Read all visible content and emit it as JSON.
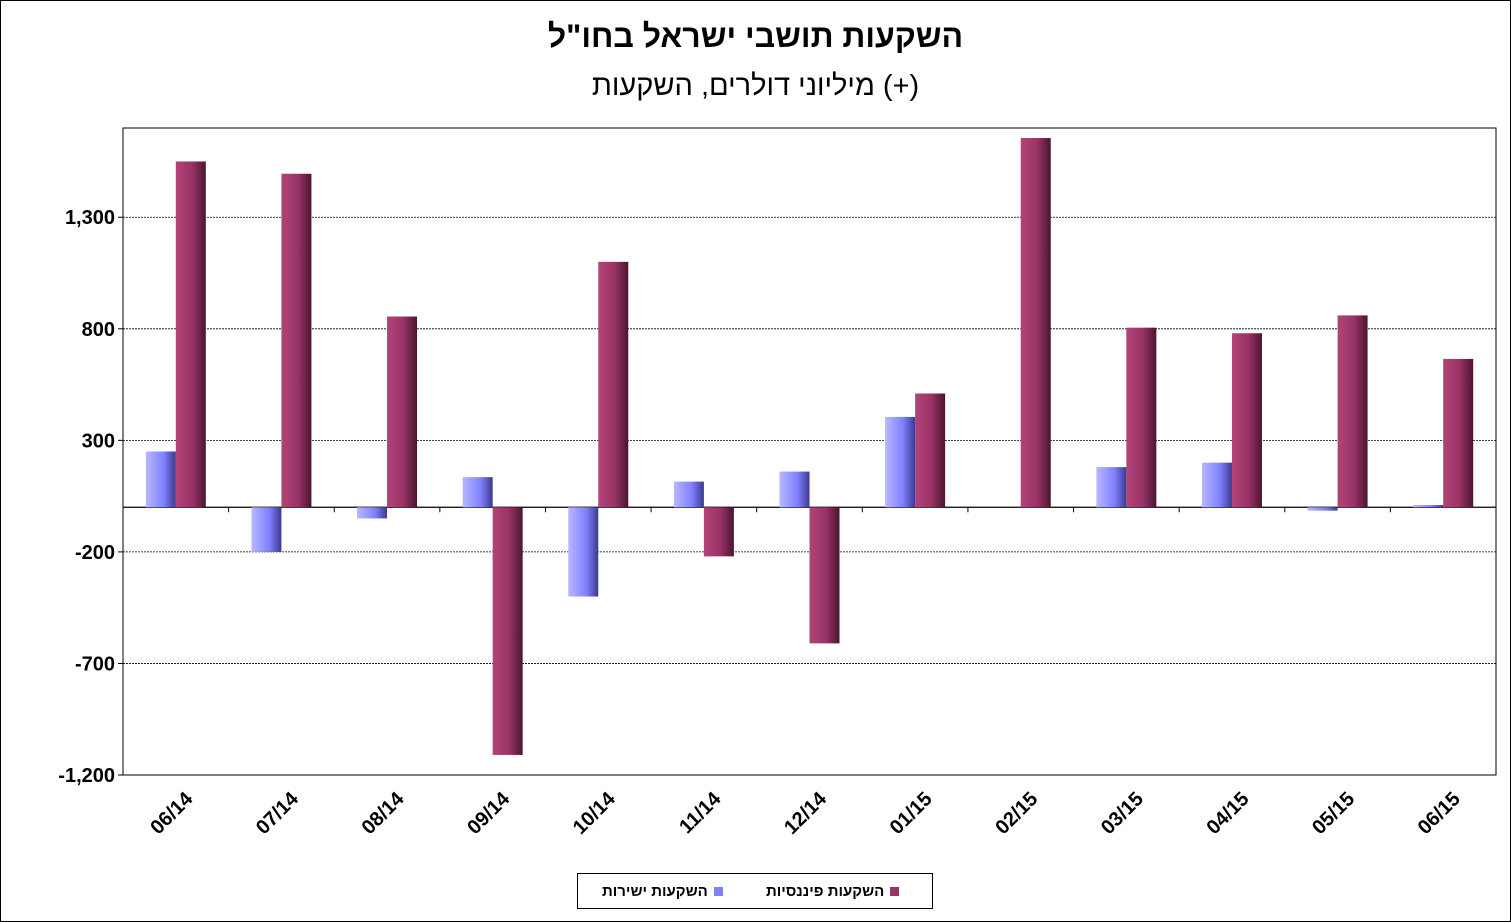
{
  "chart_data": {
    "type": "bar",
    "title": "השקעות תושבי ישראל בחו\"ל",
    "subtitle": "מיליוני דולרים, השקעות (+)",
    "categories": [
      "06/14",
      "07/14",
      "08/14",
      "09/14",
      "10/14",
      "11/14",
      "12/14",
      "01/15",
      "02/15",
      "03/15",
      "04/15",
      "05/15",
      "06/15"
    ],
    "series": [
      {
        "name": "השקעות ישירות",
        "color": "#8080ff",
        "values": [
          250,
          -200,
          -50,
          135,
          -400,
          115,
          160,
          405,
          0,
          180,
          200,
          -15,
          10
        ]
      },
      {
        "name": "השקעות פיננסיות",
        "color": "#993366",
        "values": [
          1550,
          1495,
          855,
          -1110,
          1100,
          -220,
          -610,
          510,
          1655,
          805,
          780,
          860,
          665
        ]
      }
    ],
    "ylim": [
      -1200,
      1700
    ],
    "yticks": [
      -1200,
      -700,
      -200,
      300,
      800,
      1300
    ],
    "ytick_labels": [
      "-1,200",
      "-700",
      "-200",
      "300",
      "800",
      "1,300"
    ],
    "grid": true,
    "legend_position": "bottom"
  }
}
